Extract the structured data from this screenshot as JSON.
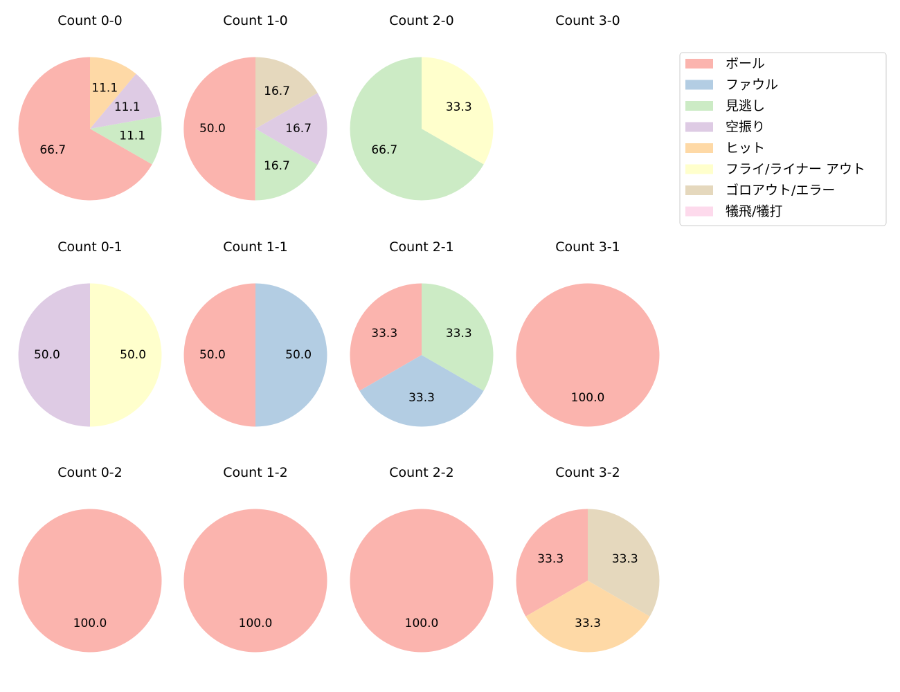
{
  "legend": {
    "items": [
      {
        "label": "ボール",
        "color": "#fbb4ae"
      },
      {
        "label": "ファウル",
        "color": "#b3cde3"
      },
      {
        "label": "見逃し",
        "color": "#ccebc5"
      },
      {
        "label": "空振り",
        "color": "#decbe4"
      },
      {
        "label": "ヒット",
        "color": "#fed9a6"
      },
      {
        "label": "フライ/ライナー アウト",
        "color": "#ffffcc"
      },
      {
        "label": "ゴロアウト/エラー",
        "color": "#e5d8bd"
      },
      {
        "label": "犠飛/犠打",
        "color": "#fddaec"
      }
    ]
  },
  "chart_data": [
    {
      "type": "pie",
      "title": "Count 0-0",
      "slices": [
        {
          "category": "ボール",
          "value": 66.7
        },
        {
          "category": "見逃し",
          "value": 11.1
        },
        {
          "category": "空振り",
          "value": 11.1
        },
        {
          "category": "ヒット",
          "value": 11.1
        }
      ]
    },
    {
      "type": "pie",
      "title": "Count 1-0",
      "slices": [
        {
          "category": "ボール",
          "value": 50.0
        },
        {
          "category": "見逃し",
          "value": 16.7
        },
        {
          "category": "空振り",
          "value": 16.7
        },
        {
          "category": "ゴロアウト/エラー",
          "value": 16.7
        }
      ]
    },
    {
      "type": "pie",
      "title": "Count 2-0",
      "slices": [
        {
          "category": "見逃し",
          "value": 66.7
        },
        {
          "category": "フライ/ライナー アウト",
          "value": 33.3
        }
      ]
    },
    {
      "type": "pie",
      "title": "Count 3-0",
      "slices": []
    },
    {
      "type": "pie",
      "title": "Count 0-1",
      "slices": [
        {
          "category": "空振り",
          "value": 50.0
        },
        {
          "category": "フライ/ライナー アウト",
          "value": 50.0
        }
      ]
    },
    {
      "type": "pie",
      "title": "Count 1-1",
      "slices": [
        {
          "category": "ボール",
          "value": 50.0
        },
        {
          "category": "ファウル",
          "value": 50.0
        }
      ]
    },
    {
      "type": "pie",
      "title": "Count 2-1",
      "slices": [
        {
          "category": "ボール",
          "value": 33.3
        },
        {
          "category": "ファウル",
          "value": 33.3
        },
        {
          "category": "見逃し",
          "value": 33.3
        }
      ]
    },
    {
      "type": "pie",
      "title": "Count 3-1",
      "slices": [
        {
          "category": "ボール",
          "value": 100.0
        }
      ]
    },
    {
      "type": "pie",
      "title": "Count 0-2",
      "slices": [
        {
          "category": "ボール",
          "value": 100.0
        }
      ]
    },
    {
      "type": "pie",
      "title": "Count 1-2",
      "slices": [
        {
          "category": "ボール",
          "value": 100.0
        }
      ]
    },
    {
      "type": "pie",
      "title": "Count 2-2",
      "slices": [
        {
          "category": "ボール",
          "value": 100.0
        }
      ]
    },
    {
      "type": "pie",
      "title": "Count 3-2",
      "slices": [
        {
          "category": "ボール",
          "value": 33.3
        },
        {
          "category": "ヒット",
          "value": 33.3
        },
        {
          "category": "ゴロアウト/エラー",
          "value": 33.3
        }
      ]
    }
  ]
}
